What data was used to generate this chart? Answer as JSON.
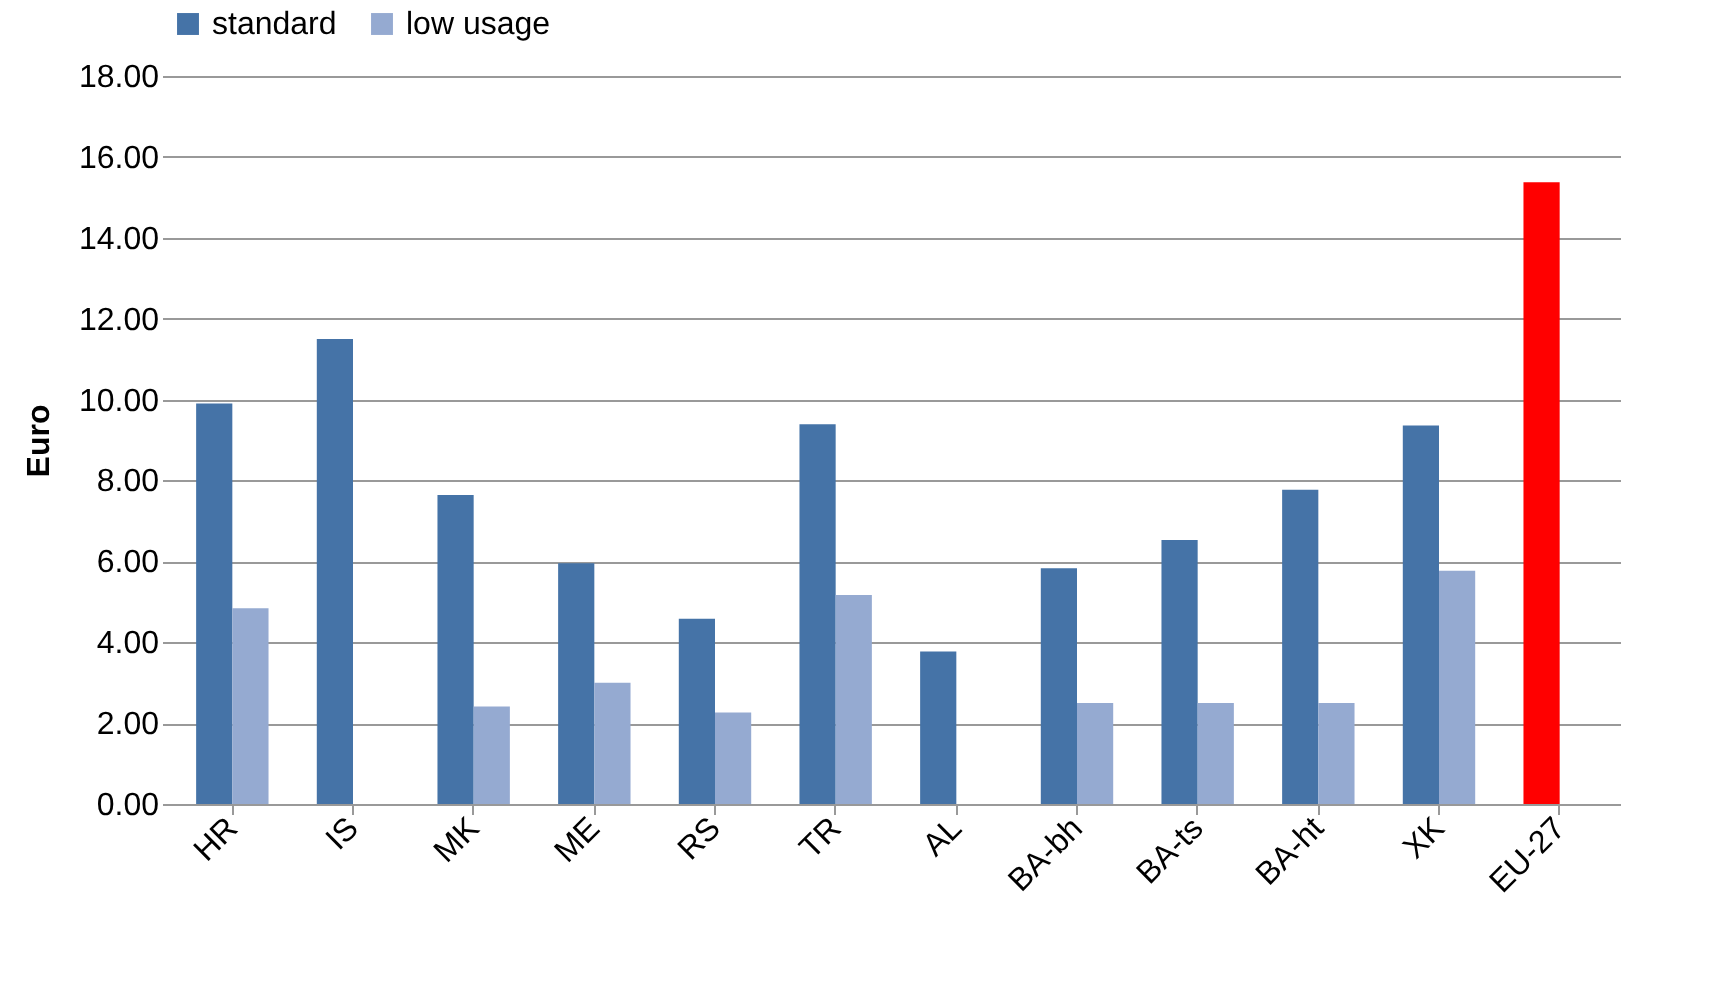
{
  "chart_data": {
    "type": "bar",
    "ylabel": "Euro",
    "categories": [
      "HR",
      "IS",
      "MK",
      "ME",
      "RS",
      "TR",
      "AL",
      "BA-bh",
      "BA-ts",
      "BA-ht",
      "XK",
      "EU-27"
    ],
    "series": [
      {
        "name": "standard",
        "color": "#4573a7",
        "colors": [
          "#4573a7",
          "#4573a7",
          "#4573a7",
          "#4573a7",
          "#4573a7",
          "#4573a7",
          "#4573a7",
          "#4573a7",
          "#4573a7",
          "#4573a7",
          "#4573a7",
          "#ff0000"
        ],
        "values": [
          9.9,
          11.5,
          7.64,
          5.95,
          4.58,
          9.39,
          3.77,
          5.83,
          6.53,
          7.77,
          9.36,
          15.37
        ]
      },
      {
        "name": "low usage",
        "color": "#95aad1",
        "values": [
          4.84,
          null,
          2.41,
          3.0,
          2.26,
          5.17,
          null,
          2.5,
          2.5,
          2.5,
          5.77,
          null
        ]
      }
    ],
    "ylim": [
      0,
      18
    ],
    "yticks": [
      {
        "value": 0,
        "label": "0.00"
      },
      {
        "value": 2,
        "label": "2.00"
      },
      {
        "value": 4,
        "label": "4.00"
      },
      {
        "value": 6,
        "label": "6.00"
      },
      {
        "value": 8,
        "label": "8.00"
      },
      {
        "value": 10,
        "label": "10.00"
      },
      {
        "value": 12,
        "label": "12.00"
      },
      {
        "value": 14,
        "label": "14.00"
      },
      {
        "value": 16,
        "label": "16.00"
      },
      {
        "value": 18,
        "label": "18.00"
      }
    ],
    "grid": "y",
    "legend": "top"
  }
}
